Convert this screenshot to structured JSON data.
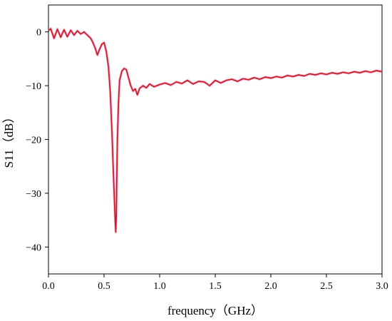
{
  "chart_data": {
    "type": "line",
    "title": "",
    "xlabel": "frequency（GHz）",
    "ylabel": "S11（dB）",
    "xlim": [
      0.0,
      3.0
    ],
    "ylim": [
      -45,
      5
    ],
    "x_ticks": [
      0.0,
      0.5,
      1.0,
      1.5,
      2.0,
      2.5,
      3.0
    ],
    "x_tick_labels": [
      "0.0",
      "0.5",
      "1.0",
      "1.5",
      "2.0",
      "2.5",
      "3.0"
    ],
    "y_ticks": [
      0,
      -10,
      -20,
      -30,
      -40
    ],
    "y_tick_labels": [
      "0",
      "−10",
      "−20",
      "−30",
      "−40"
    ],
    "grid": false,
    "legend": false,
    "line_color": "#c0201f",
    "halo_color": "#ff5ab4",
    "series": [
      {
        "name": "",
        "x": [
          0.0,
          0.02,
          0.05,
          0.08,
          0.11,
          0.14,
          0.17,
          0.2,
          0.23,
          0.26,
          0.29,
          0.32,
          0.35,
          0.38,
          0.4,
          0.42,
          0.44,
          0.46,
          0.48,
          0.5,
          0.52,
          0.54,
          0.555,
          0.57,
          0.585,
          0.6,
          0.605,
          0.61,
          0.615,
          0.62,
          0.63,
          0.64,
          0.66,
          0.68,
          0.7,
          0.72,
          0.74,
          0.76,
          0.78,
          0.8,
          0.82,
          0.85,
          0.88,
          0.91,
          0.95,
          1.0,
          1.05,
          1.1,
          1.15,
          1.2,
          1.25,
          1.3,
          1.35,
          1.4,
          1.45,
          1.5,
          1.55,
          1.6,
          1.65,
          1.7,
          1.75,
          1.8,
          1.85,
          1.9,
          1.95,
          2.0,
          2.05,
          2.1,
          2.15,
          2.2,
          2.25,
          2.3,
          2.35,
          2.4,
          2.45,
          2.5,
          2.55,
          2.6,
          2.65,
          2.7,
          2.75,
          2.8,
          2.85,
          2.9,
          2.95,
          3.0
        ],
        "y": [
          0.2,
          0.6,
          -1.2,
          0.5,
          -1.0,
          0.4,
          -0.9,
          0.3,
          -0.6,
          0.2,
          -0.4,
          0.0,
          -0.6,
          -1.2,
          -2.0,
          -3.0,
          -4.3,
          -3.2,
          -2.3,
          -2.0,
          -3.6,
          -6.5,
          -11.0,
          -18.0,
          -27.0,
          -35.0,
          -37.2,
          -34.0,
          -27.0,
          -20.0,
          -13.0,
          -9.0,
          -7.3,
          -6.8,
          -7.0,
          -8.5,
          -10.0,
          -11.0,
          -10.6,
          -11.7,
          -10.5,
          -10.0,
          -10.4,
          -9.7,
          -10.2,
          -9.8,
          -9.5,
          -9.9,
          -9.3,
          -9.6,
          -9.0,
          -9.7,
          -9.2,
          -9.3,
          -10.0,
          -9.0,
          -9.5,
          -9.0,
          -8.8,
          -9.2,
          -8.7,
          -8.9,
          -8.5,
          -8.8,
          -8.4,
          -8.6,
          -8.3,
          -8.5,
          -8.1,
          -8.3,
          -8.0,
          -8.2,
          -7.8,
          -8.0,
          -7.7,
          -7.9,
          -7.6,
          -7.8,
          -7.5,
          -7.7,
          -7.4,
          -7.6,
          -7.3,
          -7.5,
          -7.2,
          -7.4
        ]
      }
    ]
  }
}
